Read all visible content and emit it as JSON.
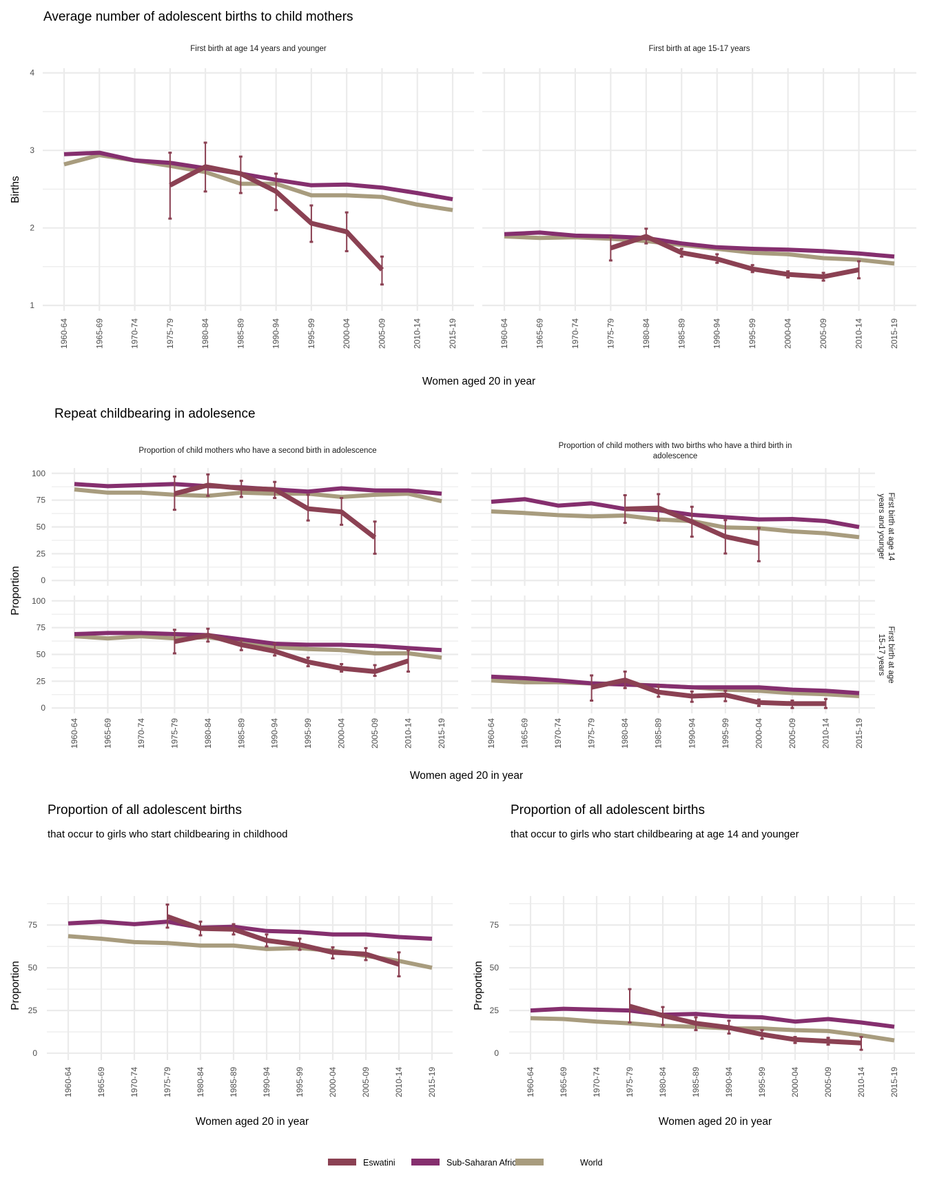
{
  "colors": {
    "Eswatini": "#8B4153",
    "Sub-Saharan Africa": "#852F6E",
    "World": "#A89C7E",
    "grid": "#EBEBEB"
  },
  "sections": {
    "births": {
      "title": "Average number of adolescent births to child mothers",
      "ylabel": "Births",
      "xlabel": "Women aged 20 in year"
    },
    "repeat": {
      "title": "Repeat childbearing in adolesence",
      "ylabel": "Proportion",
      "xlabel": "Women aged 20 in year",
      "strip_col1": "Proportion of child mothers who have a second birth in adolescence",
      "strip_col2_line1": "Proportion of child mothers with two births who have a third birth in",
      "strip_col2_line2": "adolescence",
      "strip_row1_line1": "First birth at age 14",
      "strip_row1_line2": "years and younger",
      "strip_row2_line1": "First birth at age",
      "strip_row2_line2": "15-17 years"
    },
    "share_child": {
      "title": "Proportion of all adolescent births",
      "subtitle": "that occur to girls who start childbearing in childhood",
      "ylabel": "Proportion",
      "xlabel": "Women aged 20 in year"
    },
    "share_14": {
      "title": "Proportion of all adolescent births",
      "subtitle": "that occur to girls who start childbearing at age 14 and younger",
      "ylabel": "Proportion",
      "xlabel": "Women aged 20 in year"
    }
  },
  "strips": {
    "births_left": "First birth at age 14 years and younger",
    "births_right": "First birth at age 15-17 years"
  },
  "legend": {
    "position": "bottom",
    "items": [
      "Eswatini",
      "Sub-Saharan Africa",
      "World"
    ]
  },
  "chart_data": [
    {
      "type": "line",
      "panel": "First birth at age 14 years and younger",
      "ylim": [
        0.93,
        4.06
      ],
      "yticks": [
        1,
        2,
        3,
        4
      ],
      "yminor": [
        1.5,
        2.5,
        3.5
      ],
      "grid": true,
      "x": [
        "1960-64",
        "1965-69",
        "1970-74",
        "1975-79",
        "1980-84",
        "1985-89",
        "1990-94",
        "1995-99",
        "2000-04",
        "2005-09",
        "2010-14",
        "2015-19"
      ],
      "series": [
        {
          "name": "World",
          "values": [
            2.82,
            2.94,
            2.87,
            2.8,
            2.72,
            2.57,
            2.57,
            2.42,
            2.42,
            2.4,
            2.3,
            2.23
          ]
        },
        {
          "name": "Sub-Saharan Africa",
          "values": [
            2.95,
            2.97,
            2.87,
            2.84,
            2.77,
            2.7,
            2.62,
            2.55,
            2.56,
            2.52,
            2.45,
            2.37
          ]
        },
        {
          "name": "Eswatini",
          "values": [
            null,
            null,
            null,
            2.55,
            2.79,
            2.7,
            2.47,
            2.06,
            1.95,
            1.46,
            null,
            null
          ],
          "ci": [
            null,
            null,
            null,
            [
              2.12,
              2.97
            ],
            [
              2.47,
              3.1
            ],
            [
              2.45,
              2.92
            ],
            [
              2.23,
              2.7
            ],
            [
              1.82,
              2.29
            ],
            [
              1.7,
              2.2
            ],
            [
              1.27,
              1.63
            ],
            null,
            null
          ]
        }
      ]
    },
    {
      "type": "line",
      "panel": "First birth at age 15-17 years",
      "ylim": [
        0.93,
        4.06
      ],
      "yticks": [
        1,
        2,
        3,
        4
      ],
      "yminor": [
        1.5,
        2.5,
        3.5
      ],
      "grid": true,
      "x": [
        "1960-64",
        "1965-69",
        "1970-74",
        "1975-79",
        "1980-84",
        "1985-89",
        "1990-94",
        "1995-99",
        "2000-04",
        "2005-09",
        "2010-14",
        "2015-19"
      ],
      "series": [
        {
          "name": "World",
          "values": [
            1.89,
            1.87,
            1.88,
            1.86,
            1.83,
            1.78,
            1.73,
            1.68,
            1.66,
            1.61,
            1.59,
            1.54
          ]
        },
        {
          "name": "Sub-Saharan Africa",
          "values": [
            1.92,
            1.94,
            1.9,
            1.89,
            1.87,
            1.8,
            1.75,
            1.73,
            1.72,
            1.7,
            1.67,
            1.63
          ]
        },
        {
          "name": "Eswatini",
          "values": [
            null,
            null,
            null,
            1.74,
            1.89,
            1.68,
            1.6,
            1.47,
            1.4,
            1.37,
            1.46,
            null
          ],
          "ci": [
            null,
            null,
            null,
            [
              1.58,
              1.88
            ],
            [
              1.8,
              1.99
            ],
            [
              1.63,
              1.73
            ],
            [
              1.55,
              1.66
            ],
            [
              1.43,
              1.52
            ],
            [
              1.36,
              1.44
            ],
            [
              1.32,
              1.42
            ],
            [
              1.35,
              1.57
            ],
            null
          ]
        }
      ]
    },
    {
      "type": "line",
      "panel": "Second birth / first birth at age 14 years and younger",
      "ylim": [
        -5,
        105
      ],
      "yticks": [
        0,
        25,
        50,
        75,
        100
      ],
      "yminor": [
        12.5,
        37.5,
        62.5,
        87.5
      ],
      "grid": true,
      "x": [
        "1960-64",
        "1965-69",
        "1970-74",
        "1975-79",
        "1980-84",
        "1985-89",
        "1990-94",
        "1995-99",
        "2000-04",
        "2005-09",
        "2010-14",
        "2015-19"
      ],
      "series": [
        {
          "name": "World",
          "values": [
            85,
            82,
            82,
            80,
            79,
            82,
            81,
            81,
            78,
            80,
            81,
            74
          ]
        },
        {
          "name": "Sub-Saharan Africa",
          "values": [
            90,
            88,
            89,
            90,
            88,
            87,
            85,
            83,
            86,
            84,
            84,
            81
          ]
        },
        {
          "name": "Eswatini",
          "values": [
            null,
            null,
            null,
            81,
            89,
            86,
            85,
            67,
            64,
            40,
            null,
            null
          ],
          "ci": [
            null,
            null,
            null,
            [
              66,
              97
            ],
            [
              79,
              99
            ],
            [
              78,
              93
            ],
            [
              77,
              92
            ],
            [
              56,
              80
            ],
            [
              52,
              77
            ],
            [
              25,
              55
            ],
            null,
            null
          ]
        }
      ]
    },
    {
      "type": "line",
      "panel": "Third birth / first birth at age 14 years and younger",
      "ylim": [
        -5,
        105
      ],
      "yticks": [
        0,
        25,
        50,
        75,
        100
      ],
      "yminor": [
        12.5,
        37.5,
        62.5,
        87.5
      ],
      "grid": true,
      "x": [
        "1960-64",
        "1965-69",
        "1970-74",
        "1975-79",
        "1980-84",
        "1985-89",
        "1990-94",
        "1995-99",
        "2000-04",
        "2005-09",
        "2010-14",
        "2015-19"
      ],
      "series": [
        {
          "name": "World",
          "values": [
            64.5,
            63,
            61,
            59.8,
            60.6,
            57,
            55.5,
            49.5,
            48.8,
            45.8,
            44,
            40.4
          ]
        },
        {
          "name": "Sub-Saharan Africa",
          "values": [
            73.5,
            75.9,
            69.9,
            72,
            66.7,
            65.6,
            61.3,
            59.1,
            57,
            57.4,
            55.5,
            49.9
          ]
        },
        {
          "name": "Eswatini",
          "values": [
            null,
            null,
            null,
            null,
            66.7,
            67.7,
            54.8,
            40.9,
            34.4,
            null,
            null,
            null
          ],
          "ci": [
            null,
            null,
            null,
            null,
            [
              53.8,
              79.6
            ],
            [
              55.9,
              80.6
            ],
            [
              40.9,
              68.8
            ],
            [
              25.2,
              56.3
            ],
            [
              18,
              49
            ],
            null,
            null,
            null
          ]
        }
      ]
    },
    {
      "type": "line",
      "panel": "Second birth / first birth at age 15-17 years",
      "ylim": [
        -5,
        105
      ],
      "yticks": [
        0,
        25,
        50,
        75,
        100
      ],
      "yminor": [
        12.5,
        37.5,
        62.5,
        87.5
      ],
      "grid": true,
      "x": [
        "1960-64",
        "1965-69",
        "1970-74",
        "1975-79",
        "1980-84",
        "1985-89",
        "1990-94",
        "1995-99",
        "2000-04",
        "2005-09",
        "2010-14",
        "2015-19"
      ],
      "series": [
        {
          "name": "World",
          "values": [
            67,
            65,
            67,
            65,
            66,
            62,
            57,
            55,
            54,
            51,
            51,
            47
          ]
        },
        {
          "name": "Sub-Saharan Africa",
          "values": [
            69,
            70,
            70,
            69,
            68,
            64,
            60,
            59,
            59,
            58,
            56,
            54
          ]
        },
        {
          "name": "Eswatini",
          "values": [
            null,
            null,
            null,
            62,
            68,
            59,
            53,
            43,
            37,
            34,
            44,
            null
          ],
          "ci": [
            null,
            null,
            null,
            [
              51,
              73
            ],
            [
              62,
              74
            ],
            [
              54,
              63
            ],
            [
              49,
              60
            ],
            [
              39,
              47
            ],
            [
              34,
              41
            ],
            [
              30,
              40
            ],
            [
              34,
              54
            ],
            null
          ]
        }
      ]
    },
    {
      "type": "line",
      "panel": "Third birth / first birth at age 15-17 years",
      "ylim": [
        -5,
        105
      ],
      "yticks": [
        0,
        25,
        50,
        75,
        100
      ],
      "yminor": [
        12.5,
        37.5,
        62.5,
        87.5
      ],
      "grid": true,
      "x": [
        "1960-64",
        "1965-69",
        "1970-74",
        "1975-79",
        "1980-84",
        "1985-89",
        "1990-94",
        "1995-99",
        "2000-04",
        "2005-09",
        "2010-14",
        "2015-19"
      ],
      "series": [
        {
          "name": "World",
          "values": [
            25.7,
            24,
            24,
            22.9,
            22.3,
            20.8,
            19.3,
            17.1,
            16.1,
            13.9,
            12.8,
            11.1
          ]
        },
        {
          "name": "Sub-Saharan Africa",
          "values": [
            29.3,
            27.8,
            25.7,
            23,
            21.8,
            20.8,
            19.3,
            19.3,
            19.3,
            17.1,
            16.1,
            13.9
          ]
        },
        {
          "name": "Eswatini",
          "values": [
            null,
            null,
            null,
            19.3,
            26.1,
            14.8,
            11.1,
            12.2,
            5.1,
            4.1,
            4.1,
            null
          ],
          "ci": [
            null,
            null,
            null,
            [
              6.9,
              30.4
            ],
            [
              18.6,
              34
            ],
            [
              10.5,
              20.3
            ],
            [
              5.8,
              15.4
            ],
            [
              6.4,
              16
            ],
            [
              1.9,
              7.9
            ],
            [
              0,
              6.9
            ],
            [
              0,
              8.4
            ],
            null
          ]
        }
      ]
    },
    {
      "type": "line",
      "panel": "that occur to girls who start childbearing in childhood",
      "ylim": [
        -4,
        92
      ],
      "yticks": [
        0,
        25,
        50,
        75
      ],
      "yminor": [
        12.5,
        37.5,
        62.5,
        87.5
      ],
      "grid": true,
      "x": [
        "1960-64",
        "1965-69",
        "1970-74",
        "1975-79",
        "1980-84",
        "1985-89",
        "1990-94",
        "1995-99",
        "2000-04",
        "2005-09",
        "2010-14",
        "2015-19"
      ],
      "series": [
        {
          "name": "World",
          "values": [
            68.5,
            67,
            65,
            64.5,
            63,
            63,
            61,
            61.5,
            60,
            57,
            54,
            50
          ]
        },
        {
          "name": "Sub-Saharan Africa",
          "values": [
            76,
            77,
            75.5,
            77,
            73.5,
            74,
            71.5,
            71,
            69.5,
            69.5,
            68,
            67
          ]
        },
        {
          "name": "Eswatini",
          "values": [
            null,
            null,
            null,
            80,
            73,
            72.5,
            66,
            63.5,
            59,
            58,
            52,
            null
          ],
          "ci": [
            null,
            null,
            null,
            [
              73.5,
              87
            ],
            [
              69,
              77
            ],
            [
              69.5,
              75.5
            ],
            [
              62.5,
              69.5
            ],
            [
              60.5,
              67
            ],
            [
              55.5,
              62
            ],
            [
              54.5,
              61.5
            ],
            [
              45,
              59
            ],
            null
          ]
        }
      ]
    },
    {
      "type": "line",
      "panel": "that occur to girls who start childbearing at age 14 and younger",
      "ylim": [
        -4,
        92
      ],
      "yticks": [
        0,
        25,
        50,
        75
      ],
      "yminor": [
        12.5,
        37.5,
        62.5,
        87.5
      ],
      "grid": true,
      "x": [
        "1960-64",
        "1965-69",
        "1970-74",
        "1975-79",
        "1980-84",
        "1985-89",
        "1990-94",
        "1995-99",
        "2000-04",
        "2005-09",
        "2010-14",
        "2015-19"
      ],
      "series": [
        {
          "name": "World",
          "values": [
            20.5,
            20,
            18.5,
            17.5,
            16,
            15.5,
            14.5,
            14.5,
            13.5,
            13,
            10.5,
            7.5
          ]
        },
        {
          "name": "Sub-Saharan Africa",
          "values": [
            25,
            26,
            25.5,
            25,
            22.5,
            23,
            21.5,
            21,
            18.5,
            20,
            18,
            15.5
          ]
        },
        {
          "name": "Eswatini",
          "values": [
            null,
            null,
            null,
            27.5,
            22,
            17.5,
            15,
            11,
            8,
            7,
            6,
            null
          ],
          "ci": [
            null,
            null,
            null,
            [
              18,
              37.5
            ],
            [
              16.5,
              27
            ],
            [
              13.5,
              21
            ],
            [
              11.5,
              19
            ],
            [
              8.5,
              13.5
            ],
            [
              6,
              9.5
            ],
            [
              5,
              9
            ],
            [
              2,
              9.5
            ],
            null
          ]
        }
      ]
    }
  ]
}
